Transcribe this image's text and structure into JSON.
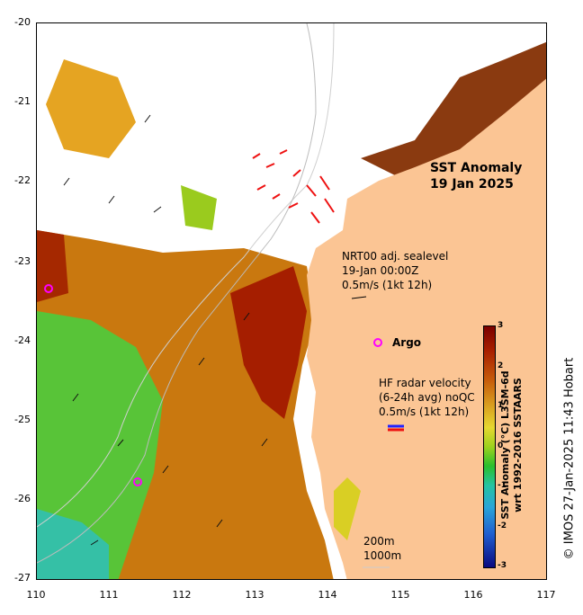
{
  "title": {
    "line1": "SST Anomaly",
    "line2": "19 Jan 2025"
  },
  "axes": {
    "lat_ticks": [
      "-20",
      "-21",
      "-22",
      "-23",
      "-24",
      "-25",
      "-26",
      "-27"
    ],
    "lon_ticks": [
      "110",
      "111",
      "112",
      "113",
      "114",
      "115",
      "116",
      "117"
    ]
  },
  "sealevel_legend": {
    "line1": "NRT00 adj. sealevel",
    "line2": "19-Jan 00:00Z",
    "line3": "0.5m/s (1kt 12h)"
  },
  "argo": {
    "label": "Argo",
    "marker_color": "#ff00ff"
  },
  "hf_radar_legend": {
    "line1": "HF radar velocity",
    "line2": "(6-24h avg) noQC",
    "line3": "0.5m/s (1kt 12h)"
  },
  "bathymetry_legend": {
    "line1": "200m",
    "line2": "1000m"
  },
  "colorbar": {
    "ticks": [
      "3",
      "2",
      "1",
      "0",
      "-1",
      "-2",
      "-3"
    ],
    "title_line1": "SST Anomaly (°C) L3SM-6d",
    "title_line2": "wrt 1992-2016 SSTAARS"
  },
  "credit": "© IMOS 27-Jan-2025 11:43 Hobart",
  "colors": {
    "land": "#fbc594",
    "cloud": "#ffffff",
    "anom_high": "#9c1a00",
    "anom_mid": "#d98a1e",
    "anom_zero": "#43c640",
    "anom_low": "#29b8b0",
    "hf_radar": "#ee1111"
  }
}
